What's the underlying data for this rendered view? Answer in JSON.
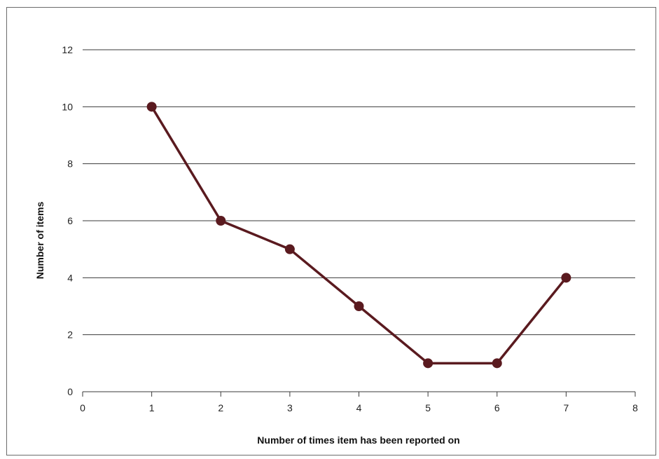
{
  "chart_data": {
    "type": "line",
    "title": "",
    "xlabel": "Number of times item has been reported on",
    "ylabel": "Number of items",
    "xlim": [
      0,
      8
    ],
    "ylim": [
      0,
      12
    ],
    "x_ticks": [
      "0",
      "1",
      "2",
      "3",
      "4",
      "5",
      "6",
      "7",
      "8"
    ],
    "y_ticks": [
      "0",
      "2",
      "4",
      "6",
      "8",
      "10",
      "12"
    ],
    "grid": "horizontal",
    "series": [
      {
        "x": [
          1,
          2,
          3,
          4,
          5,
          6,
          7
        ],
        "y": [
          10,
          6,
          5,
          3,
          1,
          1,
          4
        ],
        "color": "#5a1a1f"
      }
    ]
  }
}
